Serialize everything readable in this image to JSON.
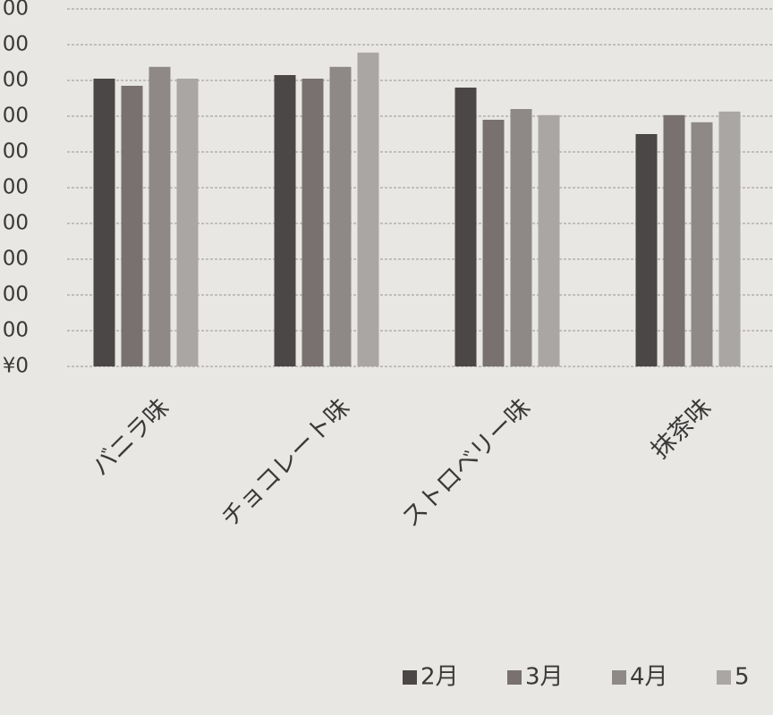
{
  "chart_data": {
    "type": "bar",
    "categories": [
      "バニラ味",
      "チョコレート味",
      "ストロベリー味",
      "抹茶味"
    ],
    "series": [
      {
        "name": "2月",
        "color": "#4b4747",
        "values": [
          805,
          815,
          780,
          650
        ]
      },
      {
        "name": "3月",
        "color": "#78716f",
        "values": [
          785,
          805,
          690,
          703
        ]
      },
      {
        "name": "4月",
        "color": "#8e8987",
        "values": [
          838,
          838,
          720,
          683
        ]
      },
      {
        "name": "5",
        "color": "#aaa6a3",
        "values": [
          805,
          878,
          703,
          713
        ]
      }
    ],
    "ylim": [
      0,
      1000
    ],
    "yticks": [
      {
        "value": 0,
        "label": "¥0"
      },
      {
        "value": 100,
        "label": "00"
      },
      {
        "value": 200,
        "label": "00"
      },
      {
        "value": 300,
        "label": "00"
      },
      {
        "value": 400,
        "label": "00"
      },
      {
        "value": 500,
        "label": "00"
      },
      {
        "value": 600,
        "label": "00"
      },
      {
        "value": 700,
        "label": "00"
      },
      {
        "value": 800,
        "label": "00"
      },
      {
        "value": 900,
        "label": "00"
      },
      {
        "value": 1000,
        "label": "00"
      }
    ],
    "grid": true
  }
}
